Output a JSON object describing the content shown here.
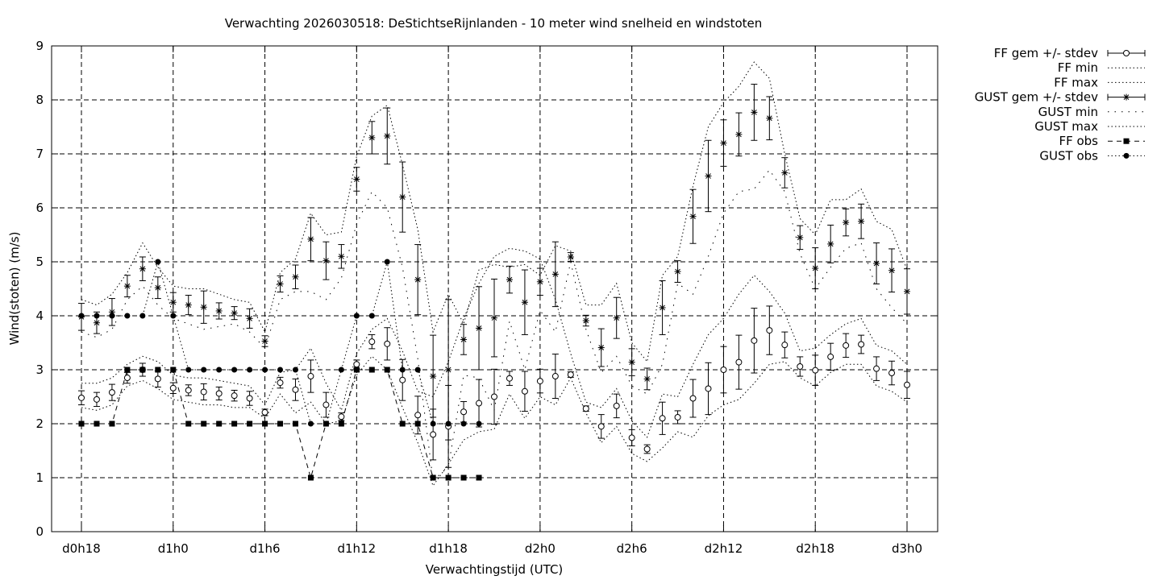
{
  "chart_data": {
    "type": "line",
    "title": "Verwachting 2026030518: DeStichtseRijnlanden - 10 meter wind snelheid en windstoten",
    "xlabel": "Verwachtingstijd (UTC)",
    "ylabel": "Wind(stoten) (m/s)",
    "xlim": [
      18,
      75
    ],
    "ylim": [
      0,
      9
    ],
    "yticks": [
      0,
      1,
      2,
      3,
      4,
      5,
      6,
      7,
      8,
      9
    ],
    "xticks": [
      {
        "x": 18,
        "label": "d0h18"
      },
      {
        "x": 24,
        "label": "d1h0"
      },
      {
        "x": 30,
        "label": "d1h6"
      },
      {
        "x": 36,
        "label": "d1h12"
      },
      {
        "x": 42,
        "label": "d1h18"
      },
      {
        "x": 48,
        "label": "d2h0"
      },
      {
        "x": 54,
        "label": "d2h6"
      },
      {
        "x": 60,
        "label": "d2h12"
      },
      {
        "x": 66,
        "label": "d2h18"
      },
      {
        "x": 72,
        "label": "d3h0"
      }
    ],
    "grid": true,
    "legend_position": "outside-top-right",
    "legend": [
      {
        "label": "FF gem +/- stdev",
        "style": "errorbar-circle"
      },
      {
        "label": "FF min",
        "style": "dotted"
      },
      {
        "label": "FF max",
        "style": "dotted"
      },
      {
        "label": "GUST gem +/- stdev",
        "style": "errorbar-star"
      },
      {
        "label": "GUST min",
        "style": "dotted-sparse"
      },
      {
        "label": "GUST max",
        "style": "dotted"
      },
      {
        "label": "FF obs",
        "style": "dashed-square"
      },
      {
        "label": "GUST obs",
        "style": "dotted-dot"
      }
    ],
    "x": [
      18,
      19,
      20,
      21,
      22,
      23,
      24,
      25,
      26,
      27,
      28,
      29,
      30,
      31,
      32,
      33,
      34,
      35,
      36,
      37,
      38,
      39,
      40,
      41,
      42,
      43,
      44,
      45,
      46,
      47,
      48,
      49,
      50,
      51,
      52,
      53,
      54,
      55,
      56,
      57,
      58,
      59,
      60,
      61,
      62,
      63,
      64,
      65,
      66,
      67,
      68,
      69,
      70,
      71,
      72
    ],
    "series": [
      {
        "name": "FF gem +/- stdev",
        "marker": "circle",
        "mean": [
          2.48,
          2.45,
          2.58,
          2.85,
          3.0,
          2.83,
          2.66,
          2.62,
          2.59,
          2.56,
          2.52,
          2.47,
          2.21,
          2.76,
          2.63,
          2.88,
          2.35,
          2.13,
          3.1,
          3.52,
          3.48,
          2.81,
          2.16,
          1.8,
          1.95,
          2.22,
          2.38,
          2.5,
          2.84,
          2.6,
          2.79,
          2.88,
          2.91,
          2.28,
          1.95,
          2.33,
          1.74,
          1.53,
          2.1,
          2.12,
          2.47,
          2.65,
          3.0,
          3.14,
          3.54,
          3.73,
          3.46,
          3.06,
          2.99,
          3.24,
          3.45,
          3.47,
          3.02,
          2.94,
          2.72
        ],
        "stdev": [
          0.13,
          0.13,
          0.15,
          0.1,
          0.12,
          0.15,
          0.1,
          0.1,
          0.15,
          0.12,
          0.1,
          0.13,
          0.06,
          0.1,
          0.2,
          0.3,
          0.23,
          0.07,
          0.08,
          0.13,
          0.3,
          0.38,
          0.35,
          0.47,
          0.76,
          0.19,
          0.44,
          0.51,
          0.13,
          0.37,
          0.22,
          0.41,
          0.05,
          0.05,
          0.22,
          0.22,
          0.15,
          0.08,
          0.3,
          0.12,
          0.35,
          0.48,
          0.43,
          0.5,
          0.6,
          0.45,
          0.24,
          0.18,
          0.28,
          0.25,
          0.22,
          0.17,
          0.22,
          0.22,
          0.25
        ]
      },
      {
        "name": "FF min",
        "style": "dotted",
        "values": [
          2.3,
          2.25,
          2.35,
          2.7,
          2.8,
          2.65,
          2.45,
          2.4,
          2.35,
          2.35,
          2.3,
          2.3,
          2.1,
          2.55,
          2.2,
          2.4,
          2.0,
          2.05,
          2.9,
          3.25,
          3.0,
          2.3,
          1.65,
          0.85,
          1.25,
          1.7,
          1.85,
          1.9,
          2.55,
          2.1,
          2.5,
          2.35,
          2.85,
          2.2,
          1.65,
          1.95,
          1.45,
          1.3,
          1.55,
          1.85,
          1.75,
          2.15,
          2.35,
          2.45,
          2.75,
          3.1,
          3.15,
          2.85,
          2.7,
          2.95,
          3.1,
          3.1,
          2.7,
          2.6,
          2.4
        ]
      },
      {
        "name": "FF max",
        "style": "dotted",
        "values": [
          2.75,
          2.75,
          2.85,
          3.1,
          3.25,
          3.15,
          2.9,
          2.85,
          2.85,
          2.8,
          2.75,
          2.7,
          2.35,
          2.95,
          3.0,
          3.4,
          2.75,
          2.25,
          3.3,
          3.75,
          3.95,
          3.35,
          2.6,
          2.5,
          3.15,
          3.95,
          4.6,
          5.1,
          5.25,
          5.2,
          5.05,
          4.3,
          3.3,
          2.4,
          2.3,
          2.65,
          2.05,
          1.75,
          2.55,
          2.5,
          3.1,
          3.65,
          3.95,
          4.4,
          4.75,
          4.45,
          4.05,
          3.35,
          3.4,
          3.65,
          3.85,
          3.95,
          3.45,
          3.35,
          3.1
        ]
      },
      {
        "name": "GUST gem +/- stdev",
        "marker": "star",
        "mean": [
          3.98,
          3.87,
          4.07,
          4.55,
          4.87,
          4.52,
          4.25,
          4.2,
          4.16,
          4.09,
          4.05,
          3.95,
          3.53,
          4.59,
          4.72,
          5.42,
          5.02,
          5.1,
          6.53,
          7.3,
          7.33,
          6.2,
          4.67,
          2.88,
          3.0,
          3.56,
          3.77,
          3.96,
          4.67,
          4.25,
          4.63,
          4.77,
          5.09,
          3.91,
          3.41,
          3.96,
          3.14,
          2.83,
          4.15,
          4.82,
          5.84,
          6.59,
          7.2,
          7.36,
          7.77,
          7.66,
          6.65,
          5.45,
          4.88,
          5.33,
          5.73,
          5.75,
          4.97,
          4.84,
          4.45
        ],
        "stdev": [
          0.25,
          0.2,
          0.25,
          0.2,
          0.22,
          0.2,
          0.18,
          0.18,
          0.3,
          0.15,
          0.12,
          0.18,
          0.1,
          0.15,
          0.22,
          0.4,
          0.35,
          0.22,
          0.22,
          0.3,
          0.52,
          0.65,
          0.65,
          0.76,
          1.3,
          0.28,
          0.77,
          0.72,
          0.25,
          0.6,
          0.25,
          0.6,
          0.08,
          0.1,
          0.35,
          0.38,
          0.25,
          0.2,
          0.5,
          0.2,
          0.5,
          0.66,
          0.43,
          0.4,
          0.52,
          0.4,
          0.28,
          0.22,
          0.38,
          0.35,
          0.25,
          0.32,
          0.38,
          0.4,
          0.42
        ]
      },
      {
        "name": "GUST min",
        "style": "dotted-sparse",
        "values": [
          3.7,
          3.6,
          3.75,
          4.3,
          4.55,
          4.2,
          3.95,
          3.85,
          3.75,
          3.8,
          3.85,
          3.7,
          3.4,
          4.3,
          4.45,
          4.45,
          4.3,
          4.7,
          5.7,
          6.3,
          6.0,
          4.9,
          3.2,
          0.95,
          1.2,
          2.9,
          2.85,
          2.25,
          3.9,
          3.0,
          4.1,
          3.7,
          5.0,
          3.75,
          2.95,
          3.25,
          2.7,
          2.55,
          3.1,
          4.6,
          4.4,
          5.1,
          5.9,
          6.3,
          6.35,
          6.7,
          6.3,
          5.15,
          4.5,
          4.9,
          5.25,
          5.35,
          4.5,
          4.15,
          3.85
        ]
      },
      {
        "name": "GUST max",
        "style": "dotted",
        "values": [
          4.3,
          4.2,
          4.4,
          4.8,
          5.35,
          4.9,
          4.55,
          4.5,
          4.5,
          4.4,
          4.3,
          4.25,
          3.7,
          4.8,
          5.05,
          5.9,
          5.5,
          5.55,
          6.95,
          7.7,
          7.9,
          6.8,
          5.6,
          3.7,
          4.4,
          3.85,
          4.85,
          4.95,
          4.9,
          4.95,
          4.75,
          5.3,
          5.2,
          4.2,
          4.2,
          4.6,
          3.5,
          3.15,
          4.75,
          5.1,
          6.4,
          7.5,
          7.95,
          8.25,
          8.7,
          8.4,
          7.0,
          5.8,
          5.5,
          6.15,
          6.15,
          6.35,
          5.75,
          5.6,
          4.85
        ]
      },
      {
        "name": "FF obs",
        "marker": "square",
        "style": "dashed",
        "values": [
          2,
          2,
          2,
          3,
          3,
          3,
          3,
          2,
          2,
          2,
          2,
          2,
          2,
          2,
          2,
          1,
          2,
          2,
          3,
          3,
          3,
          2,
          2,
          1,
          1,
          1,
          1,
          null,
          null,
          null,
          null,
          null,
          null,
          null,
          null,
          null,
          null,
          null,
          null,
          null,
          null,
          null,
          null,
          null,
          null,
          null,
          null,
          null,
          null,
          null,
          null,
          null,
          null,
          null,
          null
        ]
      },
      {
        "name": "GUST obs",
        "marker": "dot",
        "style": "dotted",
        "values": [
          4,
          4,
          4,
          4,
          4,
          5,
          4,
          3,
          3,
          3,
          3,
          3,
          3,
          3,
          3,
          2,
          2,
          3,
          4,
          4,
          5,
          3,
          3,
          2,
          2,
          2,
          2,
          null,
          null,
          null,
          null,
          null,
          null,
          null,
          null,
          null,
          null,
          null,
          null,
          null,
          null,
          null,
          null,
          null,
          null,
          null,
          null,
          null,
          null,
          null,
          null,
          null,
          null,
          null,
          null
        ]
      }
    ]
  }
}
